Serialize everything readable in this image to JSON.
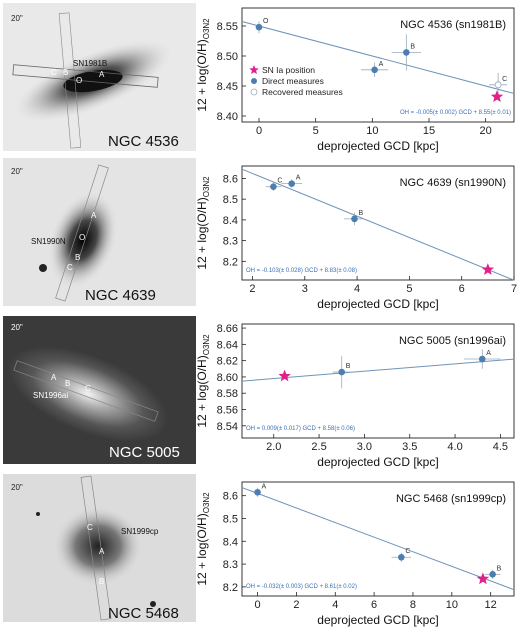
{
  "panels": [
    {
      "galaxy": "NGC 4536",
      "sn_label": "SN1981B",
      "scale": "20\"",
      "region_labels": [
        "O",
        "C",
        "B",
        "A"
      ]
    },
    {
      "galaxy": "NGC 4639",
      "sn_label": "SN1990N",
      "scale": "20\"",
      "region_labels": [
        "A",
        "O",
        "B",
        "C"
      ]
    },
    {
      "galaxy": "NGC 5005",
      "sn_label": "SN1996ai",
      "scale": "20\"",
      "region_labels": [
        "A",
        "B",
        "C"
      ]
    },
    {
      "galaxy": "NGC 5468",
      "sn_label": "SN1999cp",
      "scale": "20\"",
      "region_labels": [
        "A",
        "C",
        "B"
      ]
    }
  ],
  "legend": {
    "sn_position": "SN Ia position",
    "direct": "Direct measures",
    "recovered": "Recovered measures"
  },
  "colors": {
    "accent": "#4c7fb0",
    "star": "#e0218a",
    "line": "#6f93b8"
  },
  "chart_data": [
    {
      "type": "scatter",
      "title": "NGC 4536 (sn1981B)",
      "xlabel": "deprojected GCD [kpc]",
      "ylabel": "12 + log(O/H)",
      "ylabel_sub": "O3N2",
      "xlim": [
        -1.5,
        22.5
      ],
      "ylim": [
        8.39,
        8.58
      ],
      "xticks": [
        "0",
        "5",
        "10",
        "15",
        "20"
      ],
      "yticks": [
        "8.40",
        "8.45",
        "8.50",
        "8.55"
      ],
      "fit_text": "OH = -0.005(± 0.002) GCD + 8.55(± 0.01)",
      "fit": {
        "slope": -0.005,
        "intercept": 8.55
      },
      "points": [
        {
          "label": "O",
          "x": 0,
          "y": 8.548,
          "xerr": 0.3,
          "yerr": 0.01,
          "kind": "direct"
        },
        {
          "label": "A",
          "x": 10.2,
          "y": 8.477,
          "xerr": 1.2,
          "yerr": 0.012,
          "kind": "direct"
        },
        {
          "label": "B",
          "x": 13.0,
          "y": 8.506,
          "xerr": 1.3,
          "yerr": 0.03,
          "kind": "direct"
        },
        {
          "label": "C",
          "x": 21.1,
          "y": 8.452,
          "xerr": 0.8,
          "yerr": 0.02,
          "kind": "recovered"
        }
      ],
      "sn": {
        "x": 21.0,
        "y": 8.432
      }
    },
    {
      "type": "scatter",
      "title": "NGC 4639 (sn1990N)",
      "xlabel": "deprojected GCD [kpc]",
      "ylabel": "12 + log(O/H)",
      "ylabel_sub": "O3N2",
      "xlim": [
        1.8,
        7.0
      ],
      "ylim": [
        8.11,
        8.66
      ],
      "xticks": [
        "2",
        "3",
        "4",
        "5",
        "6",
        "7"
      ],
      "yticks": [
        "8.2",
        "8.3",
        "8.4",
        "8.5",
        "8.6"
      ],
      "fit_text": "OH = -0.103(± 0.028) GCD + 8.83(± 0.08)",
      "fit": {
        "slope": -0.103,
        "intercept": 8.83
      },
      "points": [
        {
          "label": "C",
          "x": 2.4,
          "y": 8.56,
          "xerr": 0.15,
          "yerr": 0.02,
          "kind": "direct"
        },
        {
          "label": "A",
          "x": 2.75,
          "y": 8.575,
          "xerr": 0.2,
          "yerr": 0.02,
          "kind": "direct"
        },
        {
          "label": "B",
          "x": 3.95,
          "y": 8.405,
          "xerr": 0.2,
          "yerr": 0.03,
          "kind": "direct"
        }
      ],
      "sn": {
        "x": 6.5,
        "y": 8.16
      }
    },
    {
      "type": "scatter",
      "title": "NGC 5005 (sn1996ai)",
      "xlabel": "deprojected GCD [kpc]",
      "ylabel": "12 + log(O/H)",
      "ylabel_sub": "O3N2",
      "xlim": [
        1.65,
        4.65
      ],
      "ylim": [
        8.525,
        8.665
      ],
      "xticks": [
        "2.0",
        "2.5",
        "3.0",
        "3.5",
        "4.0",
        "4.5"
      ],
      "yticks": [
        "8.54",
        "8.56",
        "8.58",
        "8.60",
        "8.62",
        "8.64",
        "8.66"
      ],
      "fit_text": "OH = 0.009(± 0.017) GCD + 8.58(± 0.06)",
      "fit": {
        "slope": 0.009,
        "intercept": 8.58
      },
      "points": [
        {
          "label": "B",
          "x": 2.75,
          "y": 8.606,
          "xerr": 0.1,
          "yerr": 0.02,
          "kind": "direct"
        },
        {
          "label": "A",
          "x": 4.3,
          "y": 8.622,
          "xerr": 0.2,
          "yerr": 0.012,
          "kind": "direct"
        }
      ],
      "sn": {
        "x": 2.12,
        "y": 8.601
      }
    },
    {
      "type": "scatter",
      "title": "NGC 5468 (sn1999cp)",
      "xlabel": "deprojected GCD [kpc]",
      "ylabel": "12 + log(O/H)",
      "ylabel_sub": "O3N2",
      "xlim": [
        -0.8,
        13.2
      ],
      "ylim": [
        8.16,
        8.66
      ],
      "xticks": [
        "0",
        "2",
        "4",
        "6",
        "8",
        "10",
        "12"
      ],
      "yticks": [
        "8.2",
        "8.3",
        "8.4",
        "8.5",
        "8.6"
      ],
      "fit_text": "OH = -0.032(± 0.003) GCD + 8.61(± 0.02)",
      "fit": {
        "slope": -0.032,
        "intercept": 8.61
      },
      "points": [
        {
          "label": "A",
          "x": 0.0,
          "y": 8.615,
          "xerr": 0.1,
          "yerr": 0.02,
          "kind": "direct"
        },
        {
          "label": "C",
          "x": 7.4,
          "y": 8.33,
          "xerr": 0.5,
          "yerr": 0.02,
          "kind": "direct"
        },
        {
          "label": "B",
          "x": 12.1,
          "y": 8.255,
          "xerr": 0.4,
          "yerr": 0.02,
          "kind": "direct"
        }
      ],
      "sn": {
        "x": 11.6,
        "y": 8.235
      }
    }
  ]
}
